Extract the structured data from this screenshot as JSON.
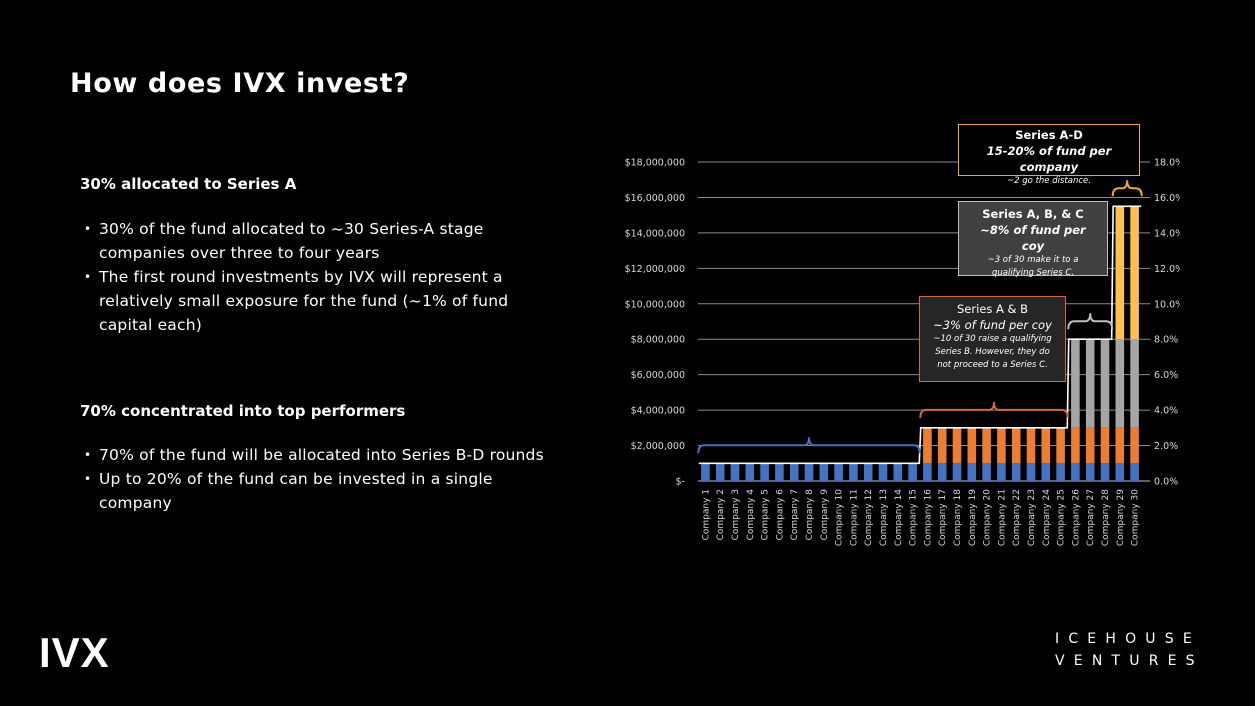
{
  "slide": {
    "title": "How does IVX invest?",
    "sections": [
      {
        "heading": "30% allocated to Series A",
        "bullets": [
          "30% of the fund allocated to ~30 Series-A stage companies over three to four years",
          "The first round investments by IVX will represent a relatively small exposure for the fund (~1% of fund capital each)"
        ]
      },
      {
        "heading": "70% concentrated into top performers",
        "bullets": [
          "70% of the fund will be allocated into Series B-D rounds",
          "Up to 20% of the fund can be invested in a single company"
        ]
      }
    ],
    "logo_left": "IVX",
    "logo_right": [
      "ICEHOUSE",
      "VENTURES"
    ]
  },
  "chart_data": {
    "type": "bar",
    "stacked": true,
    "categories": [
      "Company 1",
      "Company 2",
      "Company 3",
      "Company 4",
      "Company 5",
      "Company 6",
      "Company 7",
      "Company 8",
      "Company 9",
      "Company 10",
      "Company 11",
      "Company 12",
      "Company 13",
      "Company 14",
      "Company 15",
      "Company 16",
      "Company 17",
      "Company 18",
      "Company 19",
      "Company 20",
      "Company 21",
      "Company 22",
      "Company 23",
      "Company 24",
      "Company 25",
      "Company 26",
      "Company 27",
      "Company 28",
      "Company 29",
      "Company 30"
    ],
    "series": [
      {
        "color": "#4472c4",
        "values": [
          1000000,
          1000000,
          1000000,
          1000000,
          1000000,
          1000000,
          1000000,
          1000000,
          1000000,
          1000000,
          1000000,
          1000000,
          1000000,
          1000000,
          1000000,
          1000000,
          1000000,
          1000000,
          1000000,
          1000000,
          1000000,
          1000000,
          1000000,
          1000000,
          1000000,
          1000000,
          1000000,
          1000000,
          1000000,
          1000000
        ]
      },
      {
        "color": "#ed7d31",
        "values": [
          0,
          0,
          0,
          0,
          0,
          0,
          0,
          0,
          0,
          0,
          0,
          0,
          0,
          0,
          0,
          2000000,
          2000000,
          2000000,
          2000000,
          2000000,
          2000000,
          2000000,
          2000000,
          2000000,
          2000000,
          2000000,
          2000000,
          2000000,
          2000000,
          2000000
        ]
      },
      {
        "color": "#a5a5a5",
        "values": [
          0,
          0,
          0,
          0,
          0,
          0,
          0,
          0,
          0,
          0,
          0,
          0,
          0,
          0,
          0,
          0,
          0,
          0,
          0,
          0,
          0,
          0,
          0,
          0,
          0,
          5000000,
          5000000,
          5000000,
          5000000,
          5000000
        ]
      },
      {
        "color": "#ffc04d",
        "values": [
          0,
          0,
          0,
          0,
          0,
          0,
          0,
          0,
          0,
          0,
          0,
          0,
          0,
          0,
          0,
          0,
          0,
          0,
          0,
          0,
          0,
          0,
          0,
          0,
          0,
          0,
          0,
          0,
          7500000,
          7500000
        ]
      }
    ],
    "y_left": {
      "min": 0,
      "max": 18000000,
      "step": 2000000,
      "labels": [
        "$-",
        "$2,000,000",
        "$4,000,000",
        "$6,000,000",
        "$8,000,000",
        "$10,000,000",
        "$12,000,000",
        "$14,000,000",
        "$16,000,000",
        "$18,000,000"
      ]
    },
    "y_right": {
      "min": 0,
      "max": 18,
      "step": 2,
      "labels": [
        "0.0%",
        "2.0%",
        "4.0%",
        "6.0%",
        "8.0%",
        "10.0%",
        "12.0%",
        "14.0%",
        "16.0%",
        "18.0%"
      ]
    },
    "grid": true,
    "axis_color": "#d9d9d9",
    "line_color": "#ffffff",
    "callouts": [
      {
        "title": "Series A-D",
        "subtitle": "15-20% of fund per company",
        "note": "~2 go the distance.",
        "border": "#f0a830",
        "bg": "#000000"
      },
      {
        "title": "Series A, B, & C",
        "subtitle": "~8% of fund per coy",
        "note": "~3 of 30 make it to a qualifying Series C.",
        "border": "#bfbfbf",
        "bg": "#404040"
      },
      {
        "title": "Series A & B",
        "subtitle": "~3% of fund per coy",
        "note": "~10 of 30 raise a qualifying Series B. However, they do not proceed to a Series C.",
        "border": "#d5683a",
        "bg": "#262626"
      }
    ],
    "brackets": [
      {
        "from": 1,
        "to": 15,
        "color": "#4472c4"
      },
      {
        "from": 16,
        "to": 25,
        "color": "#d5683a"
      },
      {
        "from": 26,
        "to": 28,
        "color": "#bfbfbf"
      },
      {
        "from": 29,
        "to": 30,
        "color": "#f0a830"
      }
    ]
  }
}
